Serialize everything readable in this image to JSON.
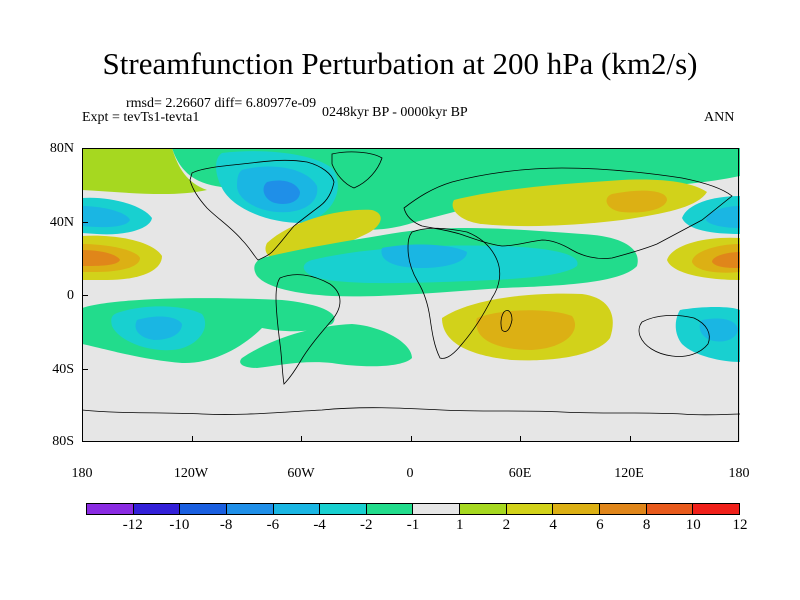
{
  "title": "Streamfunction Perturbation at 200 hPa (km2/s)",
  "stats": "rmsd= 2.26607 diff= 6.80977e-09",
  "experiment": "Expt = tevTs1-tevta1",
  "period": "0248kyr BP - 0000kyr BP",
  "season": "ANN",
  "lat_labels": [
    "80N",
    "40N",
    "0",
    "40S",
    "80S"
  ],
  "lon_labels": [
    "180",
    "120W",
    "60W",
    "0",
    "60E",
    "120E",
    "180"
  ],
  "colorbar": {
    "labels": [
      "-12",
      "-10",
      "-8",
      "-6",
      "-4",
      "-2",
      "-1",
      "1",
      "2",
      "4",
      "6",
      "8",
      "10",
      "12"
    ],
    "colors": [
      "#8a2be2",
      "#3320d8",
      "#1a5fe0",
      "#1f8fe8",
      "#1ab6e3",
      "#18d0d0",
      "#22dc8c",
      "#e6e6e6",
      "#a6d820",
      "#d2d21a",
      "#dcb014",
      "#e0861a",
      "#e85a1c",
      "#f0201a"
    ]
  },
  "map_colors": {
    "neutral": "#e6e6e6",
    "c_m1": "#22dc8c",
    "c_m2": "#18d0d0",
    "c_m4": "#1ab6e3",
    "c_m6": "#1f8fe8",
    "c_p1": "#a6d820",
    "c_p2": "#d2d21a",
    "c_p4": "#dcb014",
    "c_p6": "#e0861a"
  }
}
